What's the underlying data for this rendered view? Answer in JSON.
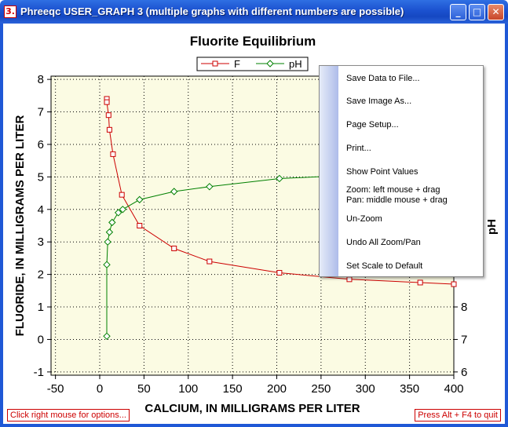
{
  "window": {
    "title": "Phreeqc USER_GRAPH 3 (multiple graphs with different numbers are possible)",
    "icon_text": "3.",
    "buttons": [
      "minimize",
      "maximize",
      "close"
    ]
  },
  "status": {
    "left": "Click right mouse for options...",
    "right": "Press Alt + F4 to quit"
  },
  "context_menu": {
    "items": [
      "Save Data to File...",
      "Save Image As...",
      "Page Setup...",
      "Print...",
      "Show Point Values",
      "Zoom: left mouse + drag",
      "Pan: middle mouse + drag",
      "Un-Zoom",
      "Undo All Zoom/Pan",
      "Set Scale to Default"
    ]
  },
  "chart_data": {
    "type": "line",
    "title": "Fluorite Equilibrium",
    "xlabel": "CALCIUM, IN MILLIGRAMS PER LITER",
    "ylabel": "FLUORIDE, IN MILLIGRAMS PER LITER",
    "y2label": "pH",
    "xlim": [
      -55,
      400
    ],
    "ylim": [
      -1.1,
      8.1
    ],
    "y2lim": [
      5.9,
      15.1
    ],
    "xticks": [
      -50,
      0,
      50,
      100,
      150,
      200,
      250,
      300,
      350,
      400
    ],
    "yticks": [
      -1,
      0,
      1,
      2,
      3,
      4,
      5,
      6,
      7,
      8
    ],
    "y2ticks": [
      6,
      7,
      8
    ],
    "grid": true,
    "legend": "top-center",
    "colors": {
      "F": "#cc0000",
      "pH": "#008000",
      "plot_bg": "#fbfbe3"
    },
    "series": [
      {
        "name": "F",
        "axis": "left",
        "marker": "square",
        "x": [
          8,
          8,
          10,
          11,
          15,
          25,
          45,
          84,
          124,
          203,
          282,
          362,
          400
        ],
        "y": [
          7.4,
          7.3,
          6.9,
          6.45,
          5.7,
          4.45,
          3.5,
          2.8,
          2.4,
          2.05,
          1.85,
          1.75,
          1.7
        ]
      },
      {
        "name": "pH",
        "axis": "right",
        "marker": "diamond",
        "x": [
          8,
          8,
          9,
          11,
          14,
          21,
          26,
          45,
          84,
          124,
          203,
          282,
          362,
          400
        ],
        "y": [
          7.1,
          9.3,
          10.0,
          10.3,
          10.6,
          10.9,
          11.0,
          11.3,
          11.55,
          11.7,
          11.95,
          12.05,
          12.15,
          12.2
        ]
      }
    ]
  }
}
